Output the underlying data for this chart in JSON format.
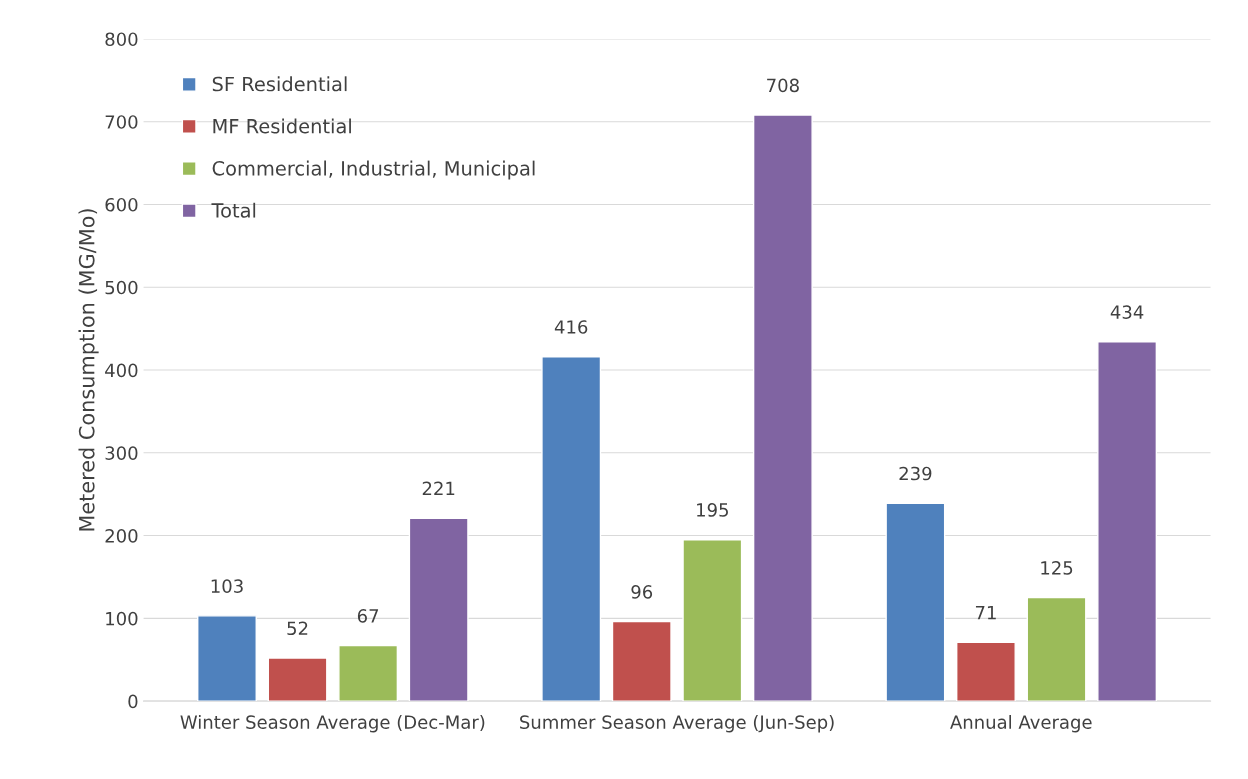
{
  "chart_data": {
    "type": "bar",
    "ylabel": "Metered Consumption (MG/Mo)",
    "categories": [
      "Winter Season Average (Dec-Mar)",
      "Summer Season Average (Jun-Sep)",
      "Annual Average"
    ],
    "series": [
      {
        "name": "SF Residential",
        "color": "#4f81bd",
        "values": [
          103,
          416,
          239
        ]
      },
      {
        "name": "MF Residential",
        "color": "#c0504d",
        "values": [
          52,
          96,
          71
        ]
      },
      {
        "name": "Commercial, Industrial, Municipal",
        "color": "#9bbb59",
        "values": [
          67,
          195,
          125
        ]
      },
      {
        "name": "Total",
        "color": "#8064a2",
        "values": [
          221,
          708,
          434
        ]
      }
    ],
    "ylim": [
      0,
      800
    ],
    "yticks": [
      0,
      100,
      200,
      300,
      400,
      500,
      600,
      700,
      800
    ],
    "grid": "y",
    "legend": "top left",
    "data_labels": true
  }
}
